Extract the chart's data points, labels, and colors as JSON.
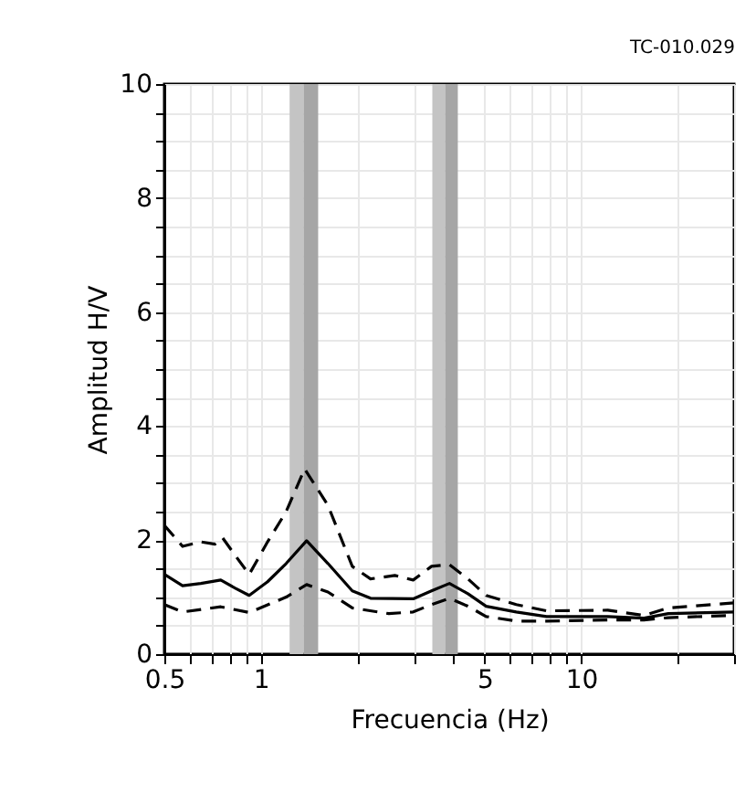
{
  "chart_data": {
    "type": "line",
    "xlabel": "Frecuencia (Hz)",
    "ylabel": "Amplitud H/V",
    "annotations": [
      "TC-010.029"
    ],
    "log": "x",
    "grid": true,
    "xlim": [
      0.5,
      30
    ],
    "ylim": [
      0,
      10
    ],
    "xticks": [
      0.5,
      {
        "value": 0.6,
        "label": null
      },
      {
        "value": 0.7,
        "label": null
      },
      {
        "value": 0.8,
        "label": null
      },
      {
        "value": 0.9,
        "label": null
      },
      1,
      {
        "value": 2,
        "label": null
      },
      {
        "value": 3,
        "label": null
      },
      {
        "value": 4,
        "label": null
      },
      5,
      {
        "value": 6,
        "label": null
      },
      {
        "value": 7,
        "label": null
      },
      {
        "value": 8,
        "label": null
      },
      {
        "value": 9,
        "label": null
      },
      10,
      {
        "value": 20,
        "label": null
      },
      {
        "value": 30,
        "label": null
      }
    ],
    "yticks": [
      0,
      {
        "value": 0.5,
        "label": null
      },
      {
        "value": 1,
        "label": null
      },
      {
        "value": 1.5,
        "label": null
      },
      2,
      {
        "value": 2.5,
        "label": null
      },
      {
        "value": 3,
        "label": null
      },
      {
        "value": 3.5,
        "label": null
      },
      4,
      {
        "value": 4.5,
        "label": null
      },
      {
        "value": 5,
        "label": null
      },
      {
        "value": 5.5,
        "label": null
      },
      6,
      {
        "value": 6.5,
        "label": null
      },
      {
        "value": 7,
        "label": null
      },
      {
        "value": 7.5,
        "label": null
      },
      8,
      {
        "value": 8.5,
        "label": null
      },
      {
        "value": 9,
        "label": null
      },
      {
        "value": 9.5,
        "label": null
      },
      10
    ],
    "bands": [
      {
        "axis": "x",
        "from": 1.23,
        "to": 1.36,
        "color": "#c4c4c4"
      },
      {
        "axis": "x",
        "from": 1.36,
        "to": 1.51,
        "color": "#a6a6a6"
      },
      {
        "axis": "x",
        "from": 3.43,
        "to": 3.76,
        "color": "#c4c4c4"
      },
      {
        "axis": "x",
        "from": 3.76,
        "to": 4.12,
        "color": "#a6a6a6"
      }
    ],
    "series": [
      {
        "color": "#000000",
        "line_style": "solid",
        "x": [
          0.5,
          0.57,
          0.65,
          0.75,
          0.83,
          0.92,
          1.05,
          1.2,
          1.39,
          1.62,
          1.93,
          2.2,
          2.99,
          3.41,
          3.88,
          4.43,
          5.05,
          6.27,
          7.8,
          12.1,
          15.7,
          18.7,
          30
        ],
        "values": [
          1.4,
          1.2,
          1.24,
          1.3,
          1.16,
          1.03,
          1.27,
          1.59,
          1.99,
          1.59,
          1.11,
          0.98,
          0.97,
          1.11,
          1.24,
          1.06,
          0.84,
          0.74,
          0.66,
          0.66,
          0.63,
          0.71,
          0.74
        ]
      },
      {
        "color": "#000000",
        "line_style": "dashed",
        "x": [
          0.5,
          0.57,
          0.65,
          0.72,
          0.76,
          0.84,
          0.92,
          1.05,
          1.2,
          1.37,
          1.62,
          1.93,
          2.2,
          2.62,
          2.99,
          3.41,
          3.88,
          4.43,
          5.05,
          6.27,
          7.8,
          12.1,
          15.7,
          18.7,
          30
        ],
        "values": [
          2.26,
          1.89,
          1.97,
          1.93,
          2.04,
          1.7,
          1.4,
          1.97,
          2.5,
          3.25,
          2.61,
          1.54,
          1.32,
          1.38,
          1.3,
          1.54,
          1.57,
          1.32,
          1.03,
          0.87,
          0.76,
          0.77,
          0.68,
          0.81,
          0.9
        ]
      },
      {
        "color": "#000000",
        "line_style": "dashed",
        "x": [
          0.5,
          0.57,
          0.75,
          0.92,
          1.2,
          1.39,
          1.62,
          1.93,
          2.51,
          2.99,
          3.41,
          3.88,
          4.43,
          5.05,
          6.27,
          7.8,
          12.1,
          15.7,
          18.7,
          30
        ],
        "values": [
          0.87,
          0.74,
          0.83,
          0.73,
          1.0,
          1.22,
          1.09,
          0.81,
          0.71,
          0.74,
          0.87,
          0.98,
          0.84,
          0.66,
          0.58,
          0.58,
          0.6,
          0.6,
          0.64,
          0.68
        ]
      }
    ]
  }
}
